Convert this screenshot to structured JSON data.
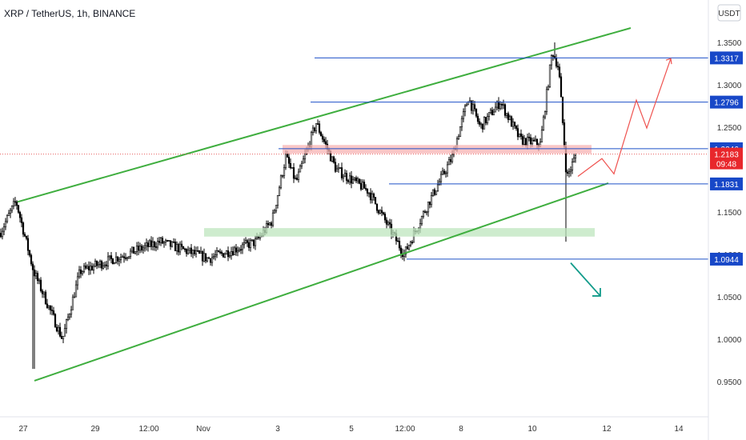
{
  "header": {
    "symbol_title": "XRP / TetherUS, 1h, BINANCE",
    "currency_button": "USDT"
  },
  "colors": {
    "candle": "#000000",
    "channel": "#3fae3f",
    "level": "#1e50c8",
    "level_label_bg": "#1848c8",
    "resistance_zone": "#f7b3b3",
    "support_zone": "#bde6bd",
    "current_price_bg": "#e8272c",
    "current_price_line": "#e86060",
    "projection_up": "#ef5350",
    "projection_down": "#119b8a",
    "axis_text": "#333333"
  },
  "chart_data": {
    "type": "candlestick",
    "instrument": "XRP / TetherUS",
    "interval": "1h",
    "exchange": "BINANCE",
    "x_tick_labels": [
      "27",
      "29",
      "12:00",
      "Nov",
      "3",
      "5",
      "12:00",
      "8",
      "10",
      "12",
      "14"
    ],
    "y_tick_labels": [
      "1.3500",
      "1.3000",
      "1.2500",
      "1.1500",
      "1.1000",
      "1.0500",
      "1.0000",
      "0.9500"
    ],
    "ylim": [
      0.925,
      1.36
    ],
    "price_path_key_points": [
      {
        "t": 0,
        "price": 1.125
      },
      {
        "t": 20,
        "price": 1.163
      },
      {
        "t": 42,
        "price": 1.08
      },
      {
        "t": 78,
        "price": 1.0
      },
      {
        "t": 100,
        "price": 1.08
      },
      {
        "t": 200,
        "price": 1.115
      },
      {
        "t": 260,
        "price": 1.095
      },
      {
        "t": 320,
        "price": 1.115
      },
      {
        "t": 340,
        "price": 1.14
      },
      {
        "t": 357,
        "price": 1.215
      },
      {
        "t": 370,
        "price": 1.185
      },
      {
        "t": 395,
        "price": 1.255
      },
      {
        "t": 420,
        "price": 1.2
      },
      {
        "t": 460,
        "price": 1.175
      },
      {
        "t": 505,
        "price": 1.1
      },
      {
        "t": 535,
        "price": 1.16
      },
      {
        "t": 565,
        "price": 1.215
      },
      {
        "t": 585,
        "price": 1.285
      },
      {
        "t": 600,
        "price": 1.25
      },
      {
        "t": 625,
        "price": 1.28
      },
      {
        "t": 650,
        "price": 1.235
      },
      {
        "t": 675,
        "price": 1.23
      },
      {
        "t": 690,
        "price": 1.34
      },
      {
        "t": 698,
        "price": 1.32
      },
      {
        "t": 708,
        "price": 1.19
      },
      {
        "t": 720,
        "price": 1.2183
      }
    ],
    "current_price": 1.2183,
    "countdown": "09:48",
    "levels": [
      {
        "label": "1.3317",
        "value": 1.3317
      },
      {
        "label": "1.2796",
        "value": 1.2796
      },
      {
        "label": "1.2246",
        "value": 1.2246
      },
      {
        "label": "1.1831",
        "value": 1.1831
      },
      {
        "label": "1.0944",
        "value": 1.0944
      }
    ],
    "zones": [
      {
        "name": "resistance",
        "from": 1.219,
        "to": 1.229
      },
      {
        "name": "support",
        "from": 1.121,
        "to": 1.131
      }
    ],
    "channel_lines": [
      {
        "name": "upper",
        "from": {
          "t": 22,
          "price": 1.162
        },
        "to": {
          "t": 788,
          "price": 1.367
        }
      },
      {
        "name": "lower",
        "from": {
          "t": 43,
          "price": 0.951
        },
        "to": {
          "t": 760,
          "price": 1.184
        }
      }
    ],
    "projections": [
      {
        "name": "bullish-path",
        "points": [
          [
            722,
            1.192
          ],
          [
            752,
            1.213
          ],
          [
            767,
            1.195
          ],
          [
            795,
            1.282
          ],
          [
            808,
            1.249
          ],
          [
            838,
            1.331
          ]
        ]
      },
      {
        "name": "bearish-path",
        "points": [
          [
            713,
            1.09
          ],
          [
            750,
            1.051
          ]
        ]
      }
    ],
    "grid": false
  }
}
